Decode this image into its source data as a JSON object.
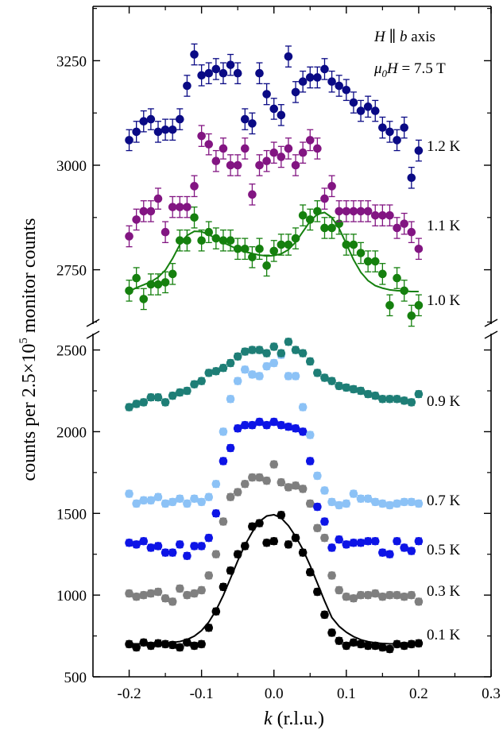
{
  "chart_data": {
    "type": "scatter",
    "xlabel": "k (r.l.u.)",
    "ylabel": "counts per 2.5×10^5 monitor counts",
    "xlim": [
      -0.25,
      0.3
    ],
    "xticks": [
      -0.2,
      -0.1,
      0.0,
      0.1,
      0.2,
      0.3
    ],
    "xtick_labels": [
      "-0.2",
      "-0.1",
      "0.0",
      "0.1",
      "0.2",
      "0.3"
    ],
    "broken_axis": true,
    "lower_panel": {
      "ylim": [
        500,
        2600
      ],
      "yticks": [
        500,
        1000,
        1500,
        2000,
        2500
      ],
      "ytick_labels": [
        "500",
        "1000",
        "1500",
        "2000",
        "2500"
      ]
    },
    "upper_panel": {
      "ylim": [
        2620,
        3380
      ],
      "yticks": [
        2750,
        3000,
        3250
      ],
      "ytick_labels": [
        "2750",
        "3000",
        "3250"
      ]
    },
    "annotation": {
      "line1": "H ∥ b axis",
      "line2": "μ0H = 7.5 T"
    },
    "grid": false,
    "legend": "none",
    "k": [
      -0.2,
      -0.19,
      -0.18,
      -0.17,
      -0.16,
      -0.15,
      -0.14,
      -0.13,
      -0.12,
      -0.11,
      -0.1,
      -0.09,
      -0.08,
      -0.07,
      -0.06,
      -0.05,
      -0.04,
      -0.03,
      -0.02,
      -0.01,
      0.0,
      0.01,
      0.02,
      0.03,
      0.04,
      0.05,
      0.06,
      0.07,
      0.08,
      0.09,
      0.1,
      0.11,
      0.12,
      0.13,
      0.14,
      0.15,
      0.16,
      0.17,
      0.18,
      0.19,
      0.2
    ],
    "series": [
      {
        "name": "0.1 K",
        "panel": "lower",
        "color": "#000000",
        "err": 20,
        "values": [
          700,
          680,
          710,
          690,
          705,
          700,
          695,
          680,
          710,
          690,
          700,
          800,
          900,
          1050,
          1150,
          1250,
          1300,
          1420,
          1440,
          1320,
          1330,
          1490,
          1310,
          1350,
          1260,
          1140,
          1020,
          880,
          770,
          720,
          690,
          710,
          700,
          690,
          690,
          680,
          670,
          700,
          690,
          700,
          705
        ],
        "fit": [
          702,
          702,
          702,
          703,
          704,
          706,
          710,
          716,
          728,
          749,
          783,
          835,
          907,
          998,
          1103,
          1210,
          1307,
          1385,
          1450,
          1484,
          1492,
          1472,
          1425,
          1359,
          1279,
          1181,
          1073,
          964,
          863,
          809,
          773,
          746,
          727,
          715,
          708,
          704,
          702,
          701,
          701,
          701,
          701
        ]
      },
      {
        "name": "0.3 K",
        "panel": "lower",
        "color": "#7f7f7f",
        "err": 20,
        "values": [
          1010,
          990,
          1000,
          1010,
          1020,
          980,
          960,
          1040,
          1000,
          1010,
          1030,
          1120,
          1250,
          1450,
          1600,
          1630,
          1680,
          1720,
          1720,
          1700,
          1800,
          1690,
          1660,
          1670,
          1650,
          1560,
          1410,
          1350,
          1120,
          1030,
          990,
          980,
          1000,
          1000,
          1010,
          990,
          1000,
          1000,
          990,
          1000,
          960
        ]
      },
      {
        "name": "0.5 K",
        "panel": "lower",
        "color": "#0d14e6",
        "err": 20,
        "values": [
          1320,
          1310,
          1330,
          1290,
          1300,
          1260,
          1260,
          1310,
          1240,
          1300,
          1300,
          1350,
          1500,
          1820,
          1900,
          2020,
          2040,
          2040,
          2060,
          2040,
          2060,
          2040,
          2030,
          2020,
          2000,
          1820,
          1540,
          1450,
          1290,
          1340,
          1310,
          1320,
          1320,
          1330,
          1330,
          1260,
          1250,
          1330,
          1290,
          1270,
          1330
        ]
      },
      {
        "name": "0.7 K",
        "panel": "lower",
        "color": "#8cc2f6",
        "err": 20,
        "values": [
          1620,
          1560,
          1580,
          1580,
          1600,
          1560,
          1570,
          1590,
          1560,
          1590,
          1570,
          1600,
          1680,
          2000,
          2200,
          2310,
          2380,
          2350,
          2340,
          2400,
          2420,
          2470,
          2340,
          2340,
          2150,
          1980,
          1730,
          1640,
          1570,
          1550,
          1560,
          1620,
          1590,
          1590,
          1570,
          1560,
          1550,
          1560,
          1570,
          1570,
          1560
        ]
      },
      {
        "name": "0.9 K",
        "panel": "lower",
        "color": "#1e7e76",
        "err": 20,
        "values": [
          2150,
          2170,
          2180,
          2210,
          2210,
          2180,
          2220,
          2240,
          2250,
          2290,
          2310,
          2360,
          2370,
          2390,
          2420,
          2460,
          2490,
          2500,
          2500,
          2480,
          2520,
          2480,
          2550,
          2500,
          2480,
          2430,
          2360,
          2330,
          2310,
          2280,
          2270,
          2260,
          2250,
          2230,
          2220,
          2200,
          2200,
          2200,
          2190,
          2180,
          2230
        ]
      },
      {
        "name": "1.0 K",
        "panel": "upper",
        "color": "#15800e",
        "err": 25,
        "values": [
          2700,
          2730,
          2680,
          2715,
          2715,
          2720,
          2740,
          2820,
          2820,
          2875,
          2820,
          2840,
          2825,
          2820,
          2820,
          2800,
          2800,
          2780,
          2800,
          2760,
          2795,
          2810,
          2810,
          2825,
          2880,
          2870,
          2890,
          2850,
          2850,
          2860,
          2810,
          2810,
          2790,
          2770,
          2770,
          2740,
          2665,
          2730,
          2700,
          2640,
          2665
        ],
        "fit": [
          2698,
          2707,
          2714,
          2721,
          2732,
          2749,
          2777,
          2810,
          2832,
          2842,
          2841,
          2834,
          2825,
          2815,
          2807,
          2799,
          2793,
          2789,
          2785,
          2783,
          2784,
          2788,
          2798,
          2816,
          2841,
          2866,
          2883,
          2887,
          2875,
          2849,
          2812,
          2774,
          2744,
          2724,
          2712,
          2706,
          2702,
          2700,
          2699,
          2698,
          2698
        ]
      },
      {
        "name": "1.1 K",
        "panel": "upper",
        "color": "#821582",
        "err": 25,
        "values": [
          2830,
          2870,
          2890,
          2890,
          2920,
          2840,
          2900,
          2900,
          2900,
          2950,
          3070,
          3050,
          3010,
          3040,
          3000,
          3000,
          3040,
          2930,
          3000,
          3010,
          3030,
          3020,
          3040,
          3000,
          3030,
          3060,
          3040,
          2920,
          2950,
          2890,
          2890,
          2890,
          2890,
          2890,
          2880,
          2880,
          2880,
          2850,
          2860,
          2840,
          2800
        ]
      },
      {
        "name": "1.2 K",
        "panel": "upper",
        "color": "#0a0a85",
        "err": 25,
        "values": [
          3060,
          3080,
          3105,
          3110,
          3080,
          3085,
          3085,
          3110,
          3190,
          3265,
          3215,
          3220,
          3230,
          3220,
          3240,
          3220,
          3110,
          3100,
          3220,
          3170,
          3135,
          3120,
          3260,
          3175,
          3200,
          3210,
          3210,
          3230,
          3200,
          3190,
          3180,
          3150,
          3130,
          3140,
          3130,
          3090,
          3080,
          3060,
          3090,
          2970,
          3035
        ]
      }
    ]
  }
}
